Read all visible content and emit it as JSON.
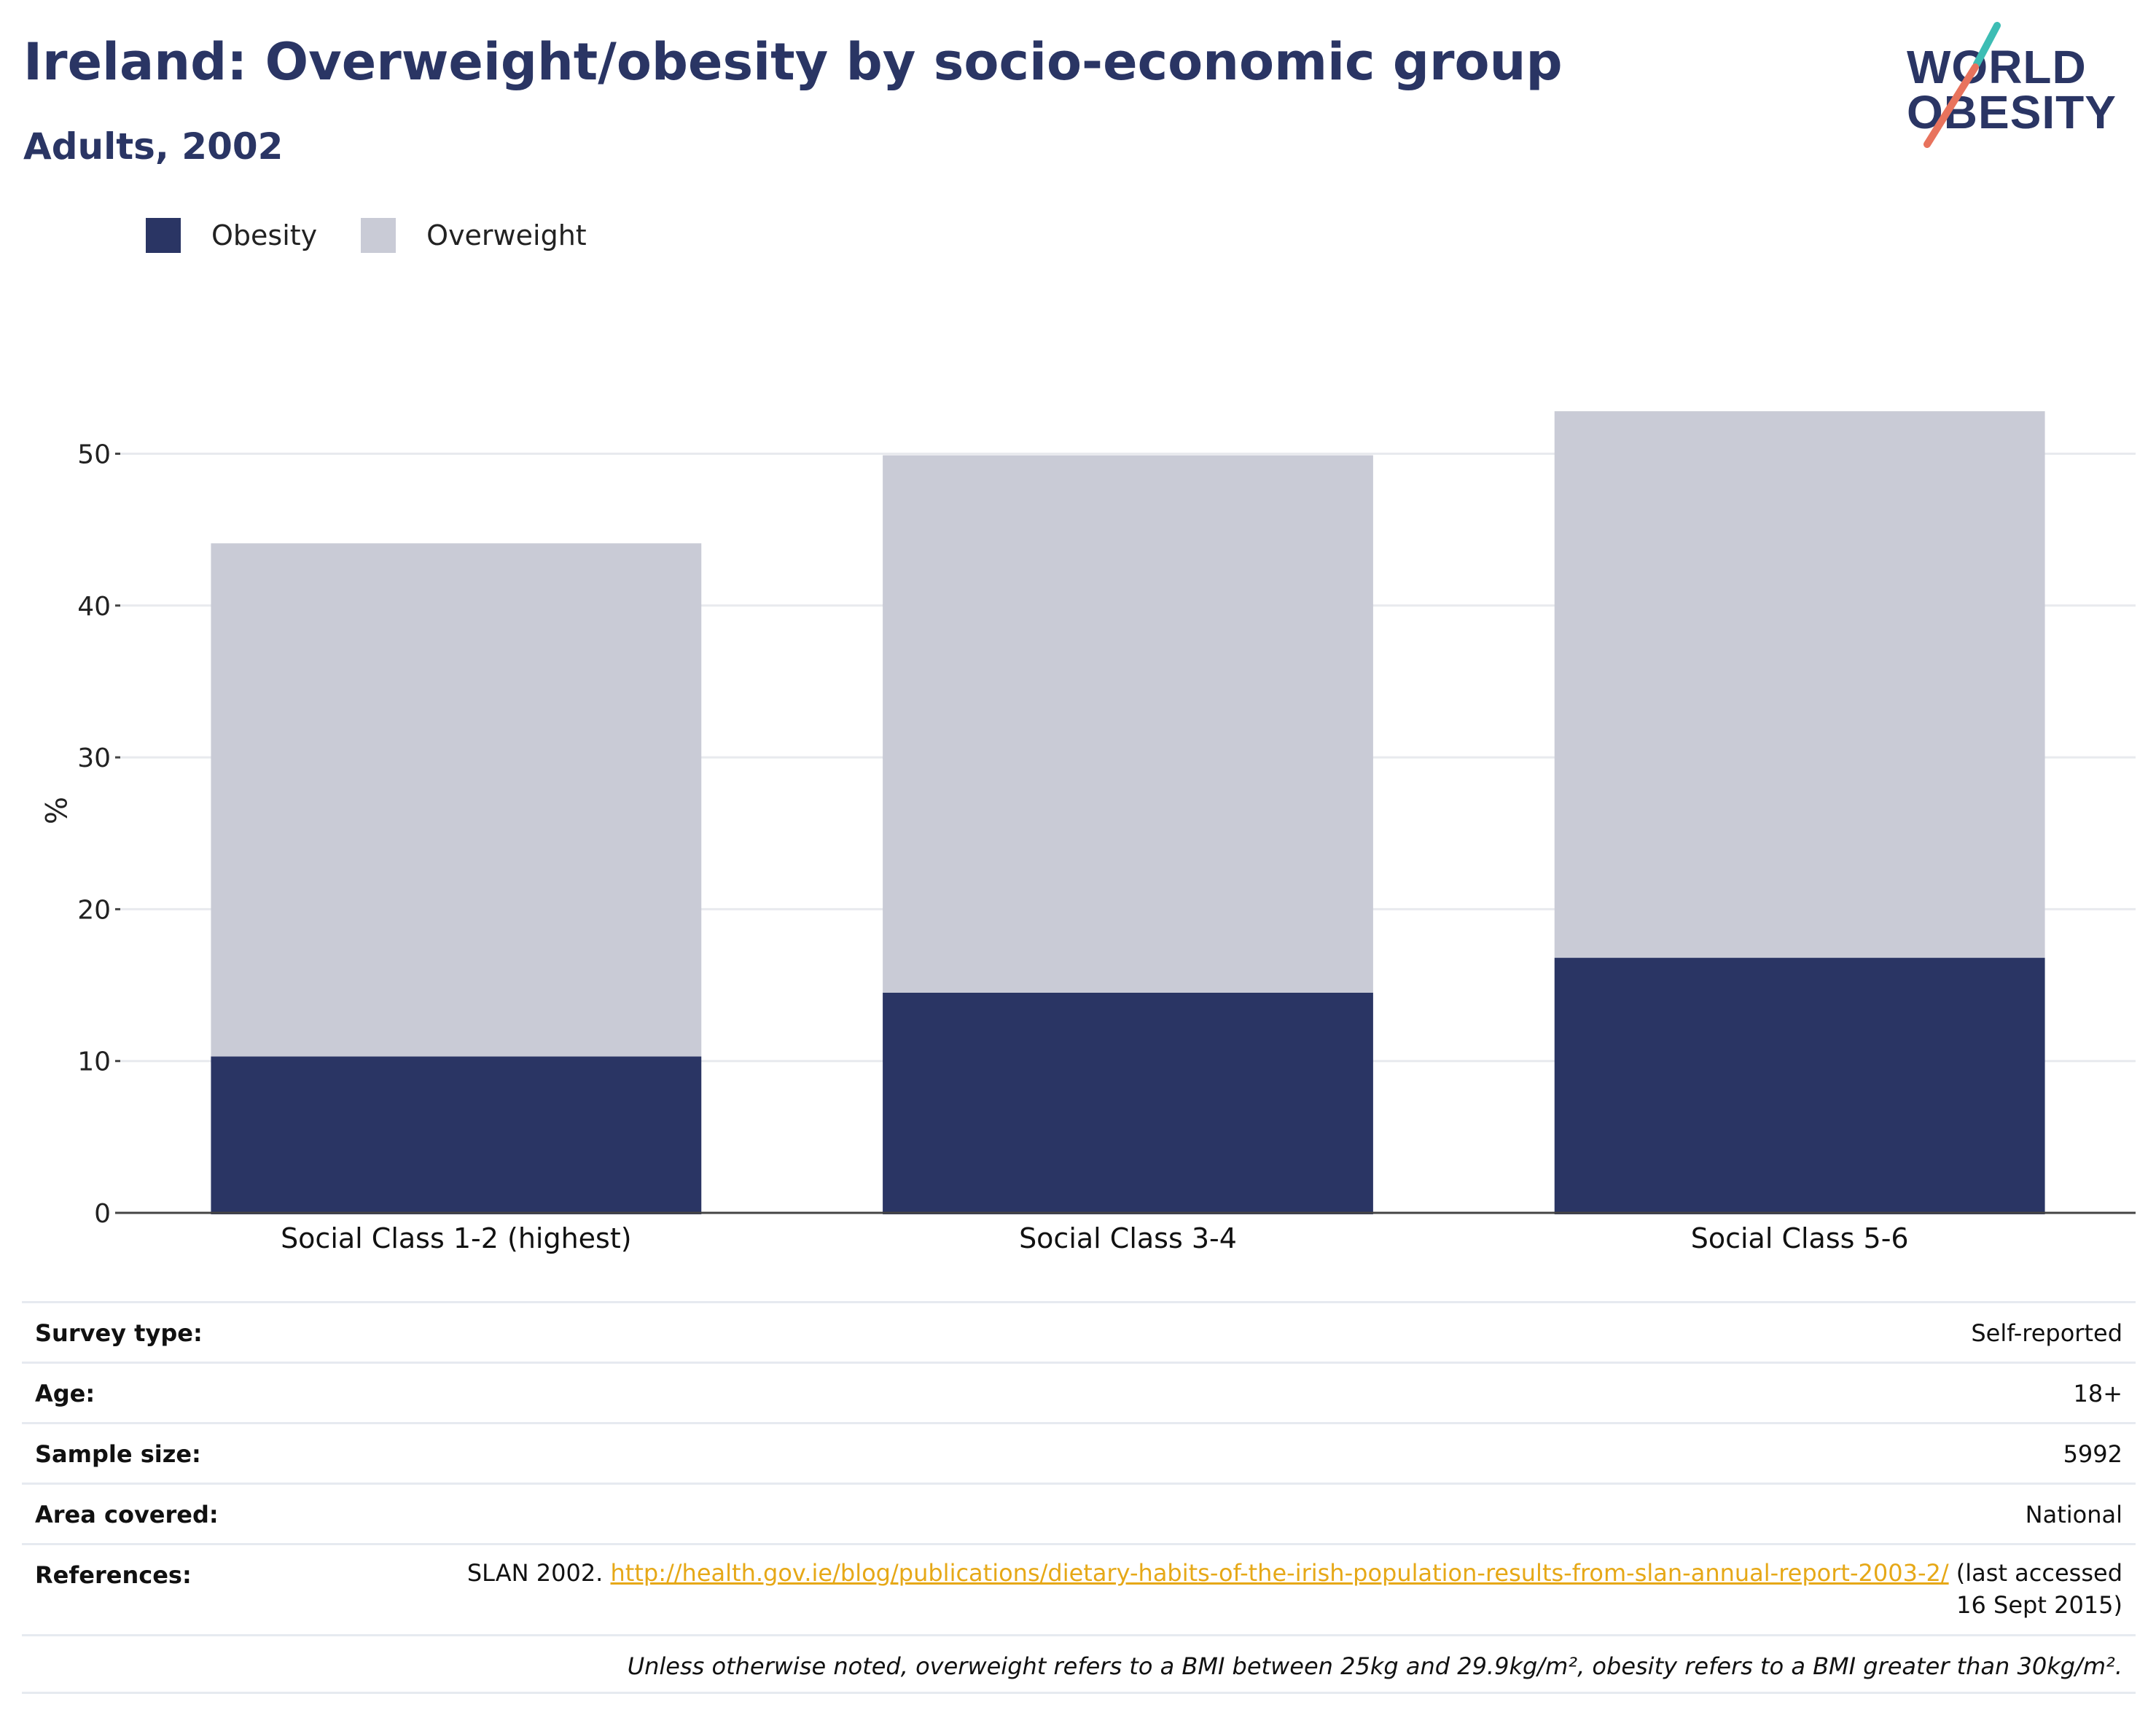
{
  "header": {
    "title": "Ireland: Overweight/obesity by socio-economic group",
    "subtitle": "Adults, 2002"
  },
  "logo": {
    "line1": "WORLD",
    "line2": "OBESITY",
    "accent_teal": "#3dbdb4",
    "accent_coral": "#e8735d"
  },
  "legend": [
    {
      "label": "Obesity",
      "color": "#2a3564"
    },
    {
      "label": "Overweight",
      "color": "#c9cbd6"
    }
  ],
  "chart_data": {
    "type": "bar",
    "stacked": true,
    "categories": [
      "Social Class 1-2 (highest)",
      "Social Class 3-4",
      "Social Class 5-6"
    ],
    "series": [
      {
        "name": "Obesity",
        "values": [
          10.3,
          14.5,
          16.8
        ],
        "color": "#2a3564"
      },
      {
        "name": "Overweight",
        "values": [
          33.8,
          35.4,
          36.0
        ],
        "color": "#c9cbd6"
      }
    ],
    "ylabel": "%",
    "yticks": [
      0,
      10,
      20,
      30,
      40,
      50
    ],
    "ylim": [
      0,
      53
    ],
    "grid": true,
    "legend_position": "top-left"
  },
  "info": {
    "survey_type": {
      "label": "Survey type:",
      "value": "Self-reported"
    },
    "age": {
      "label": "Age:",
      "value": "18+"
    },
    "sample_size": {
      "label": "Sample size:",
      "value": "5992"
    },
    "area": {
      "label": "Area covered:",
      "value": "National"
    },
    "references": {
      "label": "References:",
      "prefix": "SLAN 2002.",
      "link": "http://health.gov.ie/blog/publications/dietary-habits-of-the-irish-population-results-from-slan-annual-report-2003-2/",
      "suffix": "(last accessed 16 Sept 2015)"
    },
    "note": "Unless otherwise noted, overweight refers to a BMI between 25kg and 29.9kg/m², obesity refers to a BMI greater than 30kg/m²."
  }
}
